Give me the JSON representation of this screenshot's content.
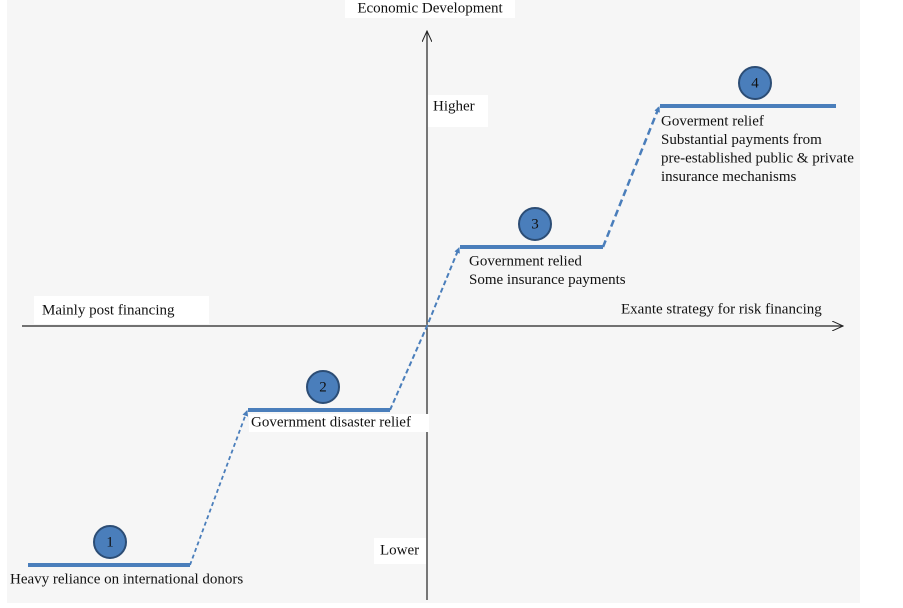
{
  "axes": {
    "y_title": "Economic Development",
    "y_high": "Higher",
    "y_low": "Lower",
    "x_left": "Mainly post financing",
    "x_right": "Exante strategy for risk financing"
  },
  "nodes": [
    {
      "number": "1",
      "lines": [
        "Heavy reliance on international donors"
      ]
    },
    {
      "number": "2",
      "lines": [
        "Government disaster relief"
      ]
    },
    {
      "number": "3",
      "lines": [
        "Government relied",
        "Some insurance payments"
      ]
    },
    {
      "number": "4",
      "lines": [
        "Goverment relief",
        "Substantial payments from",
        "pre-established public & private",
        "insurance mechanisms"
      ]
    }
  ]
}
